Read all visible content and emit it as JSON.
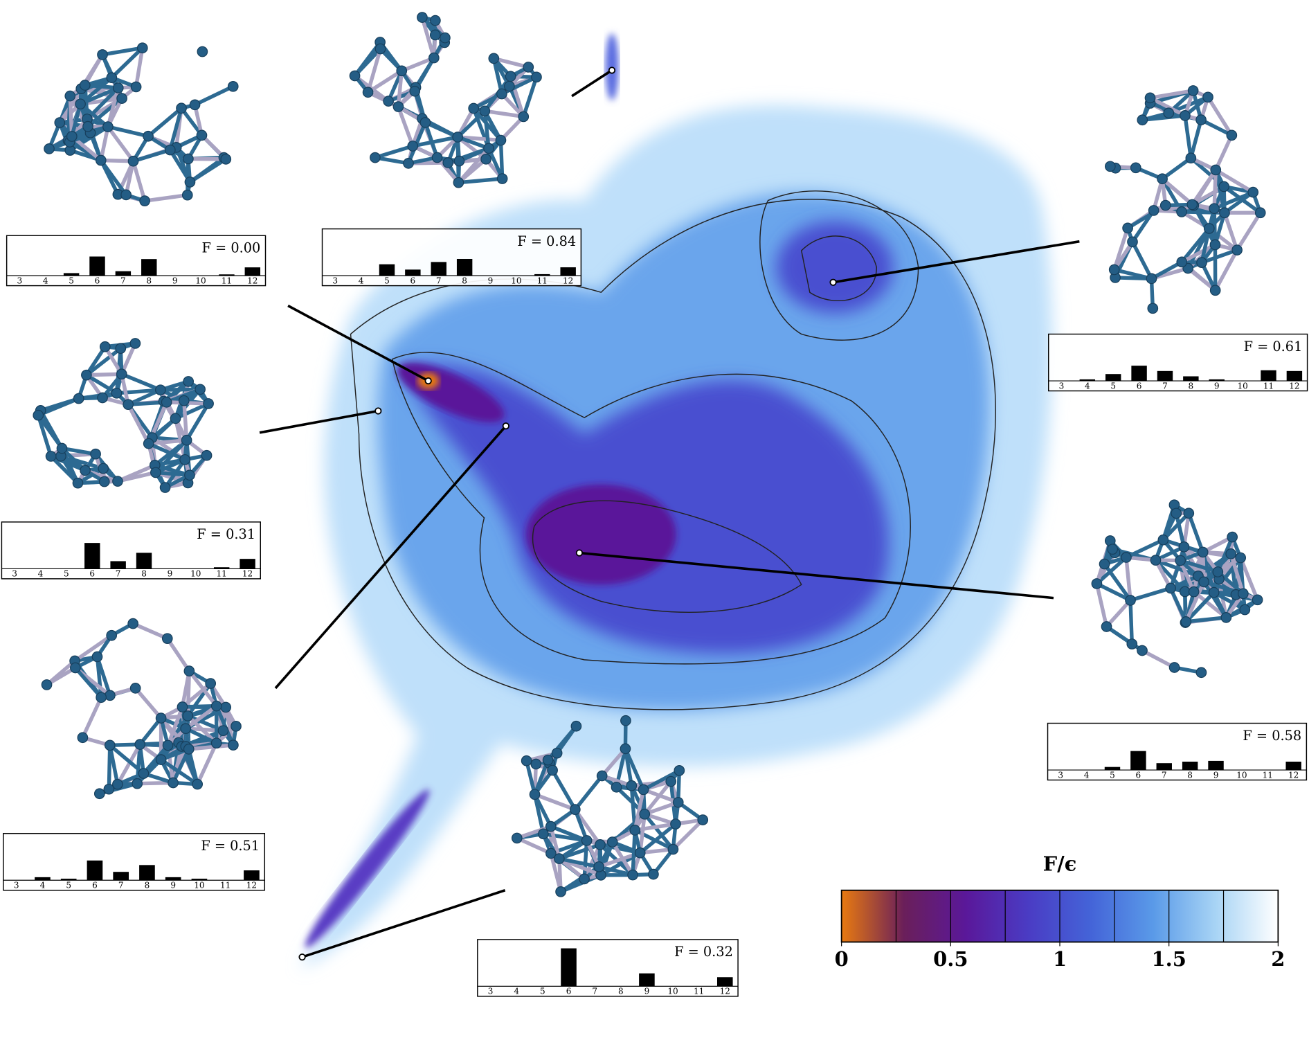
{
  "chart_data": [
    {
      "type": "bar",
      "title": "F = 0.00",
      "categories": [
        3,
        4,
        5,
        6,
        7,
        8,
        9,
        10,
        11,
        12
      ],
      "values": [
        0,
        0,
        0.08,
        0.6,
        0.14,
        0.52,
        0,
        0,
        0.04,
        0.26
      ],
      "color": "#000000",
      "ylim": [
        0,
        1.1
      ]
    },
    {
      "type": "bar",
      "title": "F = 0.84",
      "categories": [
        3,
        4,
        5,
        6,
        7,
        8,
        9,
        10,
        11,
        12
      ],
      "values": [
        0,
        0,
        0.3,
        0.16,
        0.36,
        0.44,
        0,
        0,
        0.04,
        0.22
      ],
      "color": "#000000",
      "ylim": [
        0,
        1.1
      ]
    },
    {
      "type": "bar",
      "title": "F = 0.61",
      "categories": [
        3,
        4,
        5,
        6,
        7,
        8,
        9,
        10,
        11,
        12
      ],
      "values": [
        0,
        0.04,
        0.18,
        0.4,
        0.26,
        0.12,
        0.04,
        0,
        0.28,
        0.26
      ],
      "color": "#000000",
      "ylim": [
        0,
        1.1
      ]
    },
    {
      "type": "bar",
      "title": "F = 0.31",
      "categories": [
        3,
        4,
        5,
        6,
        7,
        8,
        9,
        10,
        11,
        12
      ],
      "values": [
        0,
        0,
        0,
        0.68,
        0.2,
        0.42,
        0,
        0,
        0.04,
        0.26
      ],
      "color": "#000000",
      "ylim": [
        0,
        1.1
      ]
    },
    {
      "type": "bar",
      "title": "F = 0.58",
      "categories": [
        3,
        4,
        5,
        6,
        7,
        8,
        9,
        10,
        11,
        12
      ],
      "values": [
        0,
        0,
        0.08,
        0.5,
        0.18,
        0.22,
        0.24,
        0,
        0,
        0.22
      ],
      "color": "#000000",
      "ylim": [
        0,
        1.1
      ]
    },
    {
      "type": "bar",
      "title": "F = 0.51",
      "categories": [
        3,
        4,
        5,
        6,
        7,
        8,
        9,
        10,
        11,
        12
      ],
      "values": [
        0,
        0.08,
        0.04,
        0.52,
        0.22,
        0.4,
        0.08,
        0.04,
        0,
        0.26
      ],
      "color": "#000000",
      "ylim": [
        0,
        1.1
      ]
    },
    {
      "type": "bar",
      "title": "F = 0.32",
      "categories": [
        3,
        4,
        5,
        6,
        7,
        8,
        9,
        10,
        11,
        12
      ],
      "values": [
        0,
        0,
        0,
        1.0,
        0,
        0,
        0.34,
        0,
        0,
        0.24
      ],
      "color": "#000000",
      "ylim": [
        0,
        1.1
      ]
    },
    {
      "type": "colorbar",
      "title": "F/ϵ",
      "xlim": [
        0,
        2
      ],
      "xticks": [
        0,
        0.5,
        1,
        1.5,
        2
      ],
      "colors": [
        "#e87a10",
        "#6a1f5a",
        "#5a189a",
        "#4a3cc4",
        "#4464d8",
        "#5a9ae8",
        "#a8d4f5",
        "#ffffff"
      ],
      "levels": [
        0.25,
        0.5,
        0.75,
        1,
        1.25,
        1.5,
        1.75
      ]
    }
  ]
}
